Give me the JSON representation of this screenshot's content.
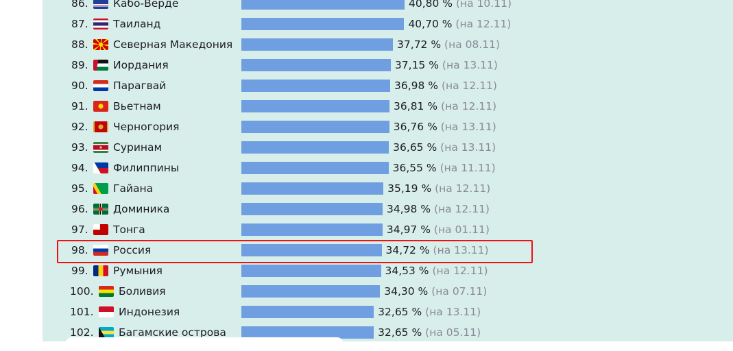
{
  "ranking": {
    "bar_color": "#6f9fe0",
    "highlight_color": "#f01010",
    "highlighted_rank": "98.",
    "rows": [
      {
        "rank": "86.",
        "flag": "cape-verde",
        "name": "Кабо-Верде",
        "value": 40.8,
        "value_text": "40,80 %",
        "date": "(на 10.11)"
      },
      {
        "rank": "87.",
        "flag": "thailand",
        "name": "Таиланд",
        "value": 40.7,
        "value_text": "40,70 %",
        "date": "(на 12.11)"
      },
      {
        "rank": "88.",
        "flag": "north-macedonia",
        "name": "Северная Македония",
        "value": 37.72,
        "value_text": "37,72 %",
        "date": "(на 08.11)"
      },
      {
        "rank": "89.",
        "flag": "jordan",
        "name": "Иордания",
        "value": 37.15,
        "value_text": "37,15 %",
        "date": "(на 13.11)"
      },
      {
        "rank": "90.",
        "flag": "paraguay",
        "name": "Парагвай",
        "value": 36.98,
        "value_text": "36,98 %",
        "date": "(на 12.11)"
      },
      {
        "rank": "91.",
        "flag": "vietnam",
        "name": "Вьетнам",
        "value": 36.81,
        "value_text": "36,81 %",
        "date": "(на 12.11)"
      },
      {
        "rank": "92.",
        "flag": "montenegro",
        "name": "Черногория",
        "value": 36.76,
        "value_text": "36,76 %",
        "date": "(на 13.11)"
      },
      {
        "rank": "93.",
        "flag": "suriname",
        "name": "Суринам",
        "value": 36.65,
        "value_text": "36,65 %",
        "date": "(на 13.11)"
      },
      {
        "rank": "94.",
        "flag": "philippines",
        "name": "Филиппины",
        "value": 36.55,
        "value_text": "36,55 %",
        "date": "(на 11.11)"
      },
      {
        "rank": "95.",
        "flag": "guyana",
        "name": "Гайана",
        "value": 35.19,
        "value_text": "35,19 %",
        "date": "(на 12.11)"
      },
      {
        "rank": "96.",
        "flag": "dominica",
        "name": "Доминика",
        "value": 34.98,
        "value_text": "34,98 %",
        "date": "(на 12.11)"
      },
      {
        "rank": "97.",
        "flag": "tonga",
        "name": "Тонга",
        "value": 34.97,
        "value_text": "34,97 %",
        "date": "(на 01.11)"
      },
      {
        "rank": "98.",
        "flag": "russia",
        "name": "Россия",
        "value": 34.72,
        "value_text": "34,72 %",
        "date": "(на 13.11)"
      },
      {
        "rank": "99.",
        "flag": "romania",
        "name": "Румыния",
        "value": 34.53,
        "value_text": "34,53 %",
        "date": "(на 12.11)"
      },
      {
        "rank": "100.",
        "flag": "bolivia",
        "name": "Боливия",
        "value": 34.3,
        "value_text": "34,30 %",
        "date": "(на 07.11)"
      },
      {
        "rank": "101.",
        "flag": "indonesia",
        "name": "Индонезия",
        "value": 32.65,
        "value_text": "32,65 %",
        "date": "(на 13.11)"
      },
      {
        "rank": "102.",
        "flag": "bahamas",
        "name": "Багамские острова",
        "value": 32.65,
        "value_text": "32,65 %",
        "date": "(на 05.11)"
      }
    ]
  }
}
